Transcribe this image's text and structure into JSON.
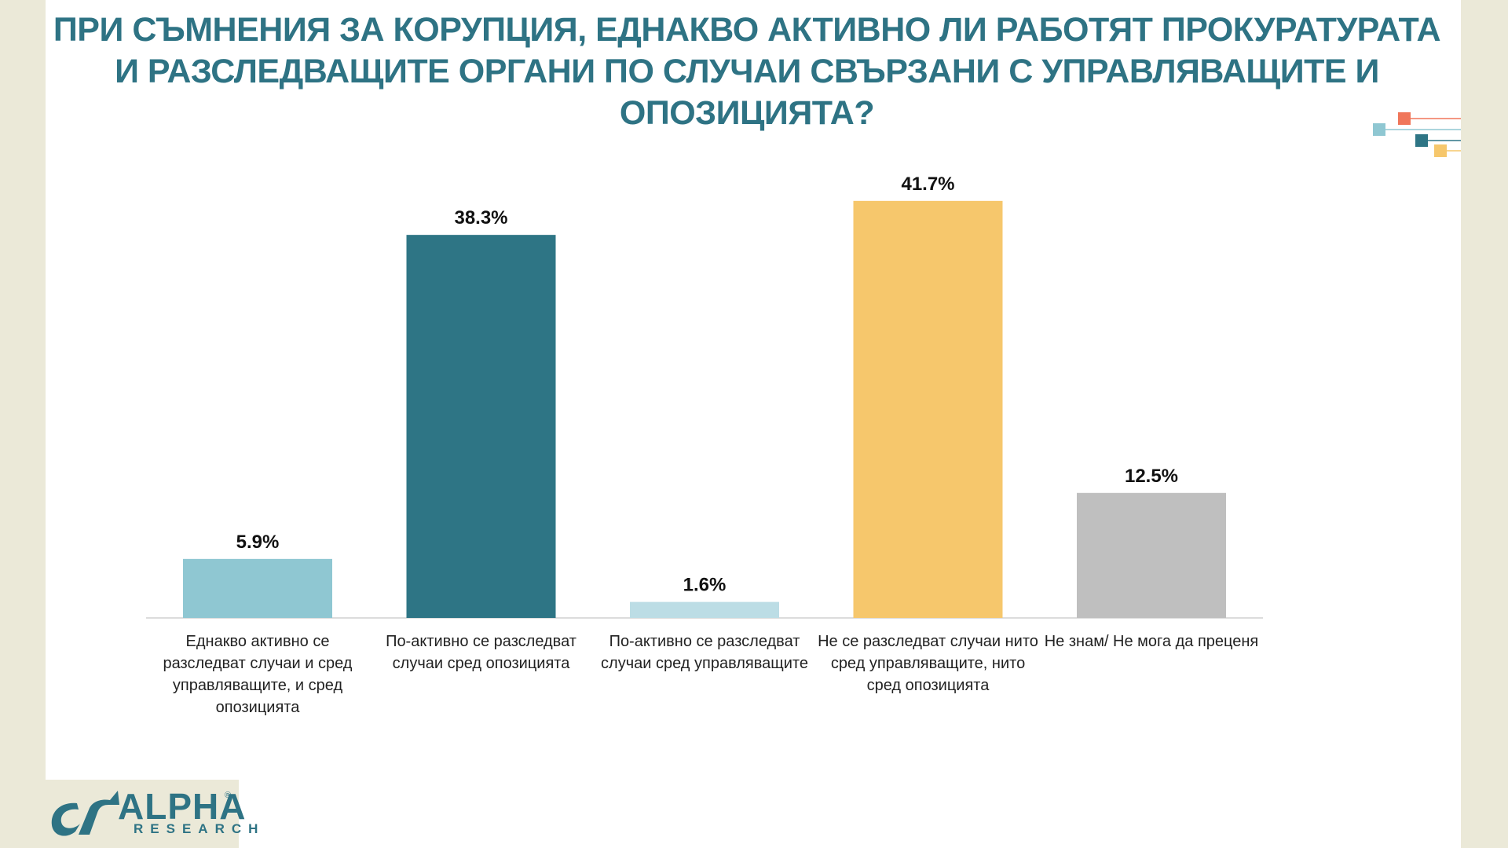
{
  "title": "ПРИ СЪМНЕНИЯ ЗА КОРУПЦИЯ, ЕДНАКВО АКТИВНО ЛИ РАБОТЯТ ПРОКУРАТУРАТА И РАЗСЛЕДВАЩИТЕ ОРГАНИ ПО СЛУЧАИ СВЪРЗАНИ С УПРАВЛЯВАЩИТЕ И ОПОЗИЦИЯТА?",
  "logo": {
    "alpha": "ALPHA",
    "research": "RESEARCH",
    "registered": "®"
  },
  "colors": {
    "title": "#2e7384",
    "axis": "#d0d0d0",
    "background": "#ebe9d8"
  },
  "chart_data": {
    "type": "bar",
    "categories": [
      "Еднакво активно се разследват случаи и сред управляващите, и сред опозицията",
      "По-активно се разследват случаи сред опозицията",
      "По-активно се разследват случаи сред управляващите",
      "Не се разследват случаи нито сред управляващите, нито сред опозицията",
      "Не знам/ Не мога да преценя"
    ],
    "values": [
      5.9,
      38.3,
      1.6,
      41.7,
      12.5
    ],
    "data_labels": [
      "5.9%",
      "38.3%",
      "1.6%",
      "41.7%",
      "12.5%"
    ],
    "colors": [
      "#8fc7d2",
      "#2e7585",
      "#bcdde5",
      "#f6c76c",
      "#bfbfbf"
    ],
    "ylim": [
      0,
      45
    ],
    "grid": false,
    "legend": "none"
  }
}
